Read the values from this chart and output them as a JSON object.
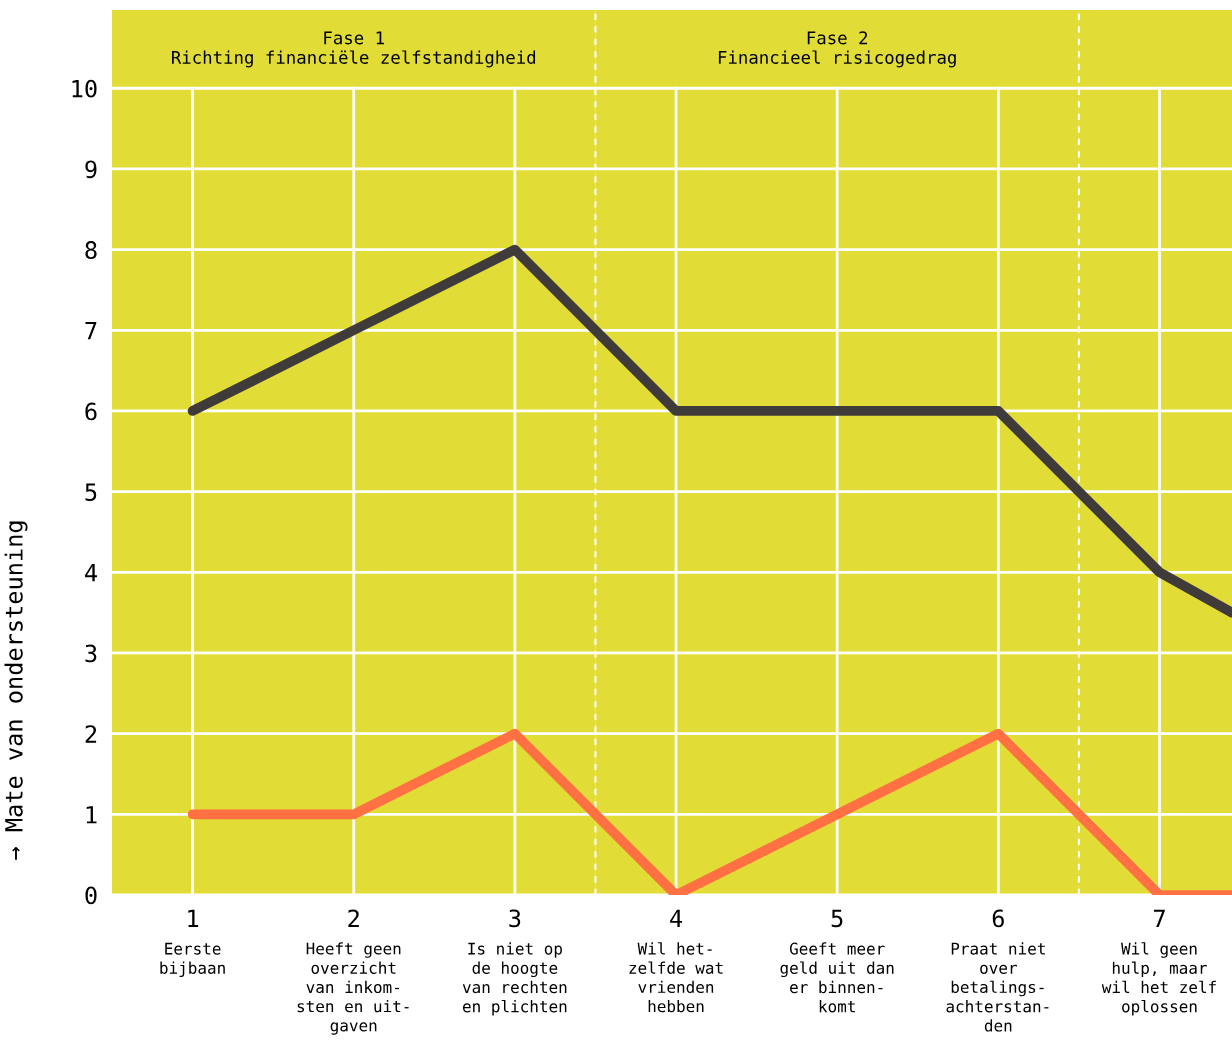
{
  "chart_data": {
    "type": "line",
    "ylabel": "→ Mate van ondersteuning",
    "x": [
      1,
      2,
      3,
      4,
      5,
      6,
      7,
      7.45
    ],
    "series": [
      {
        "color": "#403b3b",
        "values": [
          6,
          7,
          8,
          6,
          6,
          6,
          4,
          3.5
        ]
      },
      {
        "color": "#ff7043",
        "values": [
          1,
          1,
          2,
          0,
          1,
          2,
          0,
          0
        ]
      }
    ],
    "xlim": [
      0.5,
      7.45
    ],
    "xticks": [
      1,
      2,
      3,
      4,
      5,
      6,
      7
    ],
    "ylim": [
      0,
      10.97
    ],
    "yticks": [
      0,
      1,
      2,
      3,
      4,
      5,
      6,
      7,
      8,
      9,
      10
    ],
    "grid": true,
    "marker": "none",
    "line_style": "solid",
    "bands": [
      {
        "axis": "x",
        "from": 0.5,
        "to": 3.5,
        "label": "Fase 1\nRichting financiële zelfstandigheid",
        "color": "#e2dc36"
      },
      {
        "axis": "x",
        "from": 3.5,
        "to": 6.5,
        "label": "Fase 2\nFinancieel risicogedrag",
        "color": "#e2dc36"
      },
      {
        "axis": "x",
        "from": 6.5,
        "to": 7.45,
        "label": null,
        "color": "#e2dc36"
      }
    ],
    "ref_lines": [
      {
        "axis": "x",
        "value": 3.5,
        "label": null,
        "color": "#ffffff",
        "line_style": "dashed"
      },
      {
        "axis": "x",
        "value": 6.5,
        "label": null,
        "color": "#ffffff",
        "line_style": "dashed"
      }
    ],
    "annotations": [
      "Eerste\nbijbaan",
      "Heeft geen\noverzicht\nvan inkom-\nsten en uit-\ngaven",
      "Is niet op\nde hoogte\nvan rechten\nen plichten",
      "Wil het-\nzelfde wat\nvrienden\nhebben",
      "Geeft meer\ngeld uit dan\ner binnen-\nkomt",
      "Praat niet\nover\nbetalings-\nachterstan-\nden",
      "Wil geen\nhulp, maar\nwil het zelf\noplossen"
    ]
  }
}
